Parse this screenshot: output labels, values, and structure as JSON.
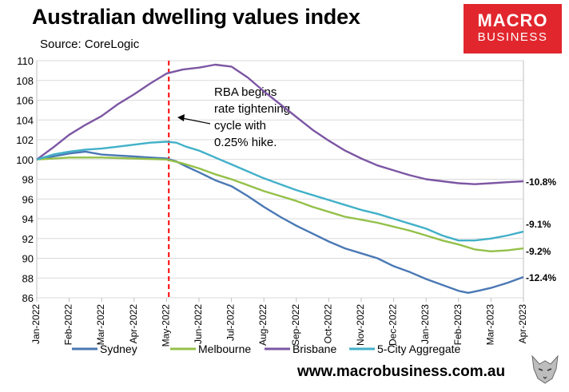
{
  "title": "Australian dwelling values index",
  "source": "Source: CoreLogic",
  "logo": {
    "line1": "MACRO",
    "line2": "BUSINESS",
    "color": "#e1262d"
  },
  "website": "www.macrobusiness.com.au",
  "chart_data": {
    "type": "line",
    "ylim": [
      86,
      110
    ],
    "yticks": [
      86,
      88,
      90,
      92,
      94,
      96,
      98,
      100,
      102,
      104,
      106,
      108,
      110
    ],
    "x_range": [
      0,
      15
    ],
    "xticks": [
      "Jan-2022",
      "Feb-2022",
      "Mar-2022",
      "Apr-2022",
      "May-2022",
      "Jun-2022",
      "Jul-2022",
      "Aug-2022",
      "Sep-2022",
      "Oct-2022",
      "Nov-2022",
      "Dec-2022",
      "Jan-2023",
      "Feb-2023",
      "Mar-2023",
      "Apr-2023"
    ],
    "grid": true,
    "legend_position": "bottom",
    "annotation": {
      "x": 4.07,
      "lines": [
        "RBA begins",
        "rate tightening",
        "cycle with",
        "0.25% hike."
      ]
    },
    "series": [
      {
        "name": "Sydney",
        "color": "#4a78b4",
        "end_label": "-12.4%",
        "x": [
          0,
          0.5,
          1,
          1.5,
          2,
          2.5,
          3,
          3.5,
          4,
          4.3,
          4.6,
          5,
          5.5,
          6,
          6.5,
          7,
          7.5,
          8,
          8.5,
          9,
          9.5,
          10,
          10.5,
          11,
          11.5,
          12,
          12.5,
          13,
          13.3,
          13.6,
          14,
          14.5,
          15
        ],
        "values": [
          100,
          100.3,
          100.6,
          100.8,
          100.5,
          100.4,
          100.3,
          100.2,
          100.1,
          99.8,
          99.3,
          98.7,
          97.9,
          97.3,
          96.3,
          95.2,
          94.2,
          93.3,
          92.5,
          91.7,
          91.0,
          90.5,
          90.0,
          89.2,
          88.6,
          87.9,
          87.3,
          86.7,
          86.5,
          86.7,
          87.0,
          87.5,
          88.1
        ]
      },
      {
        "name": "Melbourne",
        "color": "#93c049",
        "end_label": "-9.2%",
        "x": [
          0,
          1,
          2,
          3,
          4,
          4.5,
          5,
          5.5,
          6,
          6.5,
          7,
          7.5,
          8,
          8.5,
          9,
          9.5,
          10,
          10.5,
          11,
          11.5,
          12,
          12.5,
          13,
          13.5,
          14,
          14.5,
          15
        ],
        "values": [
          100,
          100.2,
          100.2,
          100.1,
          100.0,
          99.6,
          99.1,
          98.5,
          98.0,
          97.4,
          96.8,
          96.3,
          95.8,
          95.2,
          94.7,
          94.2,
          93.9,
          93.6,
          93.2,
          92.8,
          92.3,
          91.8,
          91.4,
          90.9,
          90.7,
          90.8,
          91.0
        ]
      },
      {
        "name": "Brisbane",
        "color": "#7c56a3",
        "end_label": "-10.8%",
        "x": [
          0,
          0.5,
          1,
          1.5,
          2,
          2.5,
          3,
          3.5,
          4,
          4.5,
          5,
          5.5,
          6,
          6.5,
          7,
          7.5,
          8,
          8.5,
          9,
          9.5,
          10,
          10.5,
          11,
          11.5,
          12,
          12.5,
          13,
          13.5,
          14,
          14.5,
          15
        ],
        "values": [
          100,
          101.2,
          102.5,
          103.5,
          104.4,
          105.6,
          106.6,
          107.7,
          108.7,
          109.1,
          109.3,
          109.6,
          109.4,
          108.3,
          106.9,
          105.6,
          104.3,
          103.0,
          101.9,
          100.9,
          100.1,
          99.4,
          98.9,
          98.4,
          98.0,
          97.8,
          97.6,
          97.5,
          97.6,
          97.7,
          97.8
        ]
      },
      {
        "name": "5-City Aggregate",
        "color": "#41b0c8",
        "end_label": "-9.1%",
        "x": [
          0,
          0.5,
          1,
          1.5,
          2,
          2.5,
          3,
          3.5,
          4,
          4.3,
          4.6,
          5,
          5.5,
          6,
          6.5,
          7,
          7.5,
          8,
          8.5,
          9,
          9.5,
          10,
          10.5,
          11,
          11.5,
          12,
          12.5,
          13,
          13.5,
          14,
          14.5,
          15
        ],
        "values": [
          100,
          100.5,
          100.8,
          101.0,
          101.1,
          101.3,
          101.5,
          101.7,
          101.8,
          101.7,
          101.3,
          100.9,
          100.2,
          99.5,
          98.8,
          98.1,
          97.5,
          96.9,
          96.4,
          95.9,
          95.4,
          94.9,
          94.5,
          94.0,
          93.5,
          93.0,
          92.3,
          91.8,
          91.8,
          92.0,
          92.3,
          92.7
        ]
      }
    ]
  }
}
